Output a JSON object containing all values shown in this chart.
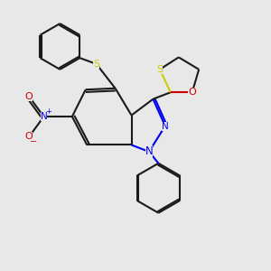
{
  "bg_color": "#e8e8e8",
  "bond_color": "#1a1a1a",
  "N_color": "#0000ee",
  "S_color": "#cccc00",
  "O_color": "#cc0000",
  "lw": 1.5,
  "dbo": 0.06,
  "figsize": [
    3.0,
    3.0
  ],
  "dpi": 100,
  "xlim": [
    0,
    10
  ],
  "ylim": [
    0,
    10
  ]
}
